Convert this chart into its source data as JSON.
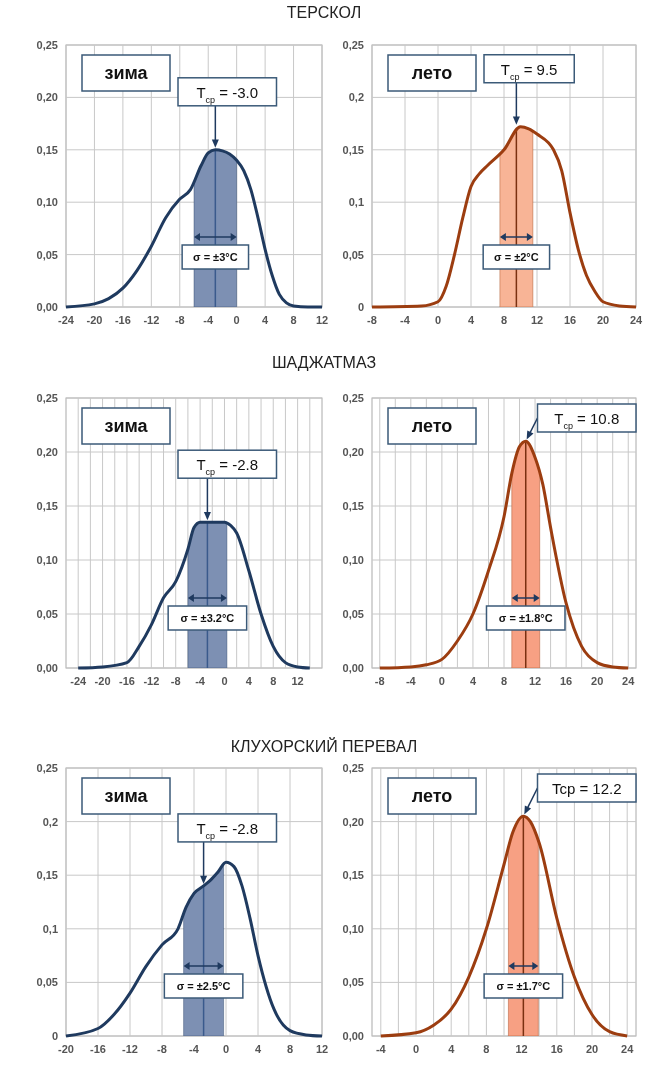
{
  "chart_data": [
    {
      "type": "line",
      "title": "ТЕРСКОЛ",
      "color": "#1f3a5f",
      "grid": true,
      "xlim": [
        -24,
        12
      ],
      "ylim": [
        0,
        0.25
      ],
      "xticks": [
        -24,
        -20,
        -16,
        -12,
        -8,
        -4,
        0,
        4,
        8,
        12
      ],
      "yticks": [
        {
          "value": 0,
          "label": "0,00"
        },
        {
          "value": 0.05,
          "label": "0,05"
        },
        {
          "value": 0.1,
          "label": "0,10"
        },
        {
          "value": 0.15,
          "label": "0,15"
        },
        {
          "value": 0.2,
          "label": "0,20"
        },
        {
          "value": 0.25,
          "label": "0,25"
        }
      ],
      "x": [
        -24,
        -20,
        -18,
        -16,
        -14,
        -12,
        -10,
        -8,
        -6.5,
        -5,
        -4,
        -3,
        -2,
        -1,
        0,
        1,
        2,
        3,
        4,
        5,
        6,
        7,
        8,
        10,
        12
      ],
      "values": [
        0,
        0.003,
        0.008,
        0.018,
        0.035,
        0.058,
        0.085,
        0.103,
        0.112,
        0.135,
        0.147,
        0.15,
        0.149,
        0.146,
        0.14,
        0.13,
        0.112,
        0.085,
        0.055,
        0.03,
        0.012,
        0.004,
        0.001,
        0,
        0
      ],
      "bands": [
        {
          "axis": "x",
          "from": -6,
          "to": 0,
          "color": "#7d90b3"
        }
      ],
      "ref_lines": [
        {
          "axis": "x",
          "value": -3,
          "color": "#3a5a8c"
        }
      ],
      "annotations": [
        "зима",
        {
          "text": "T$_{ср}$ = -3.0",
          "x": -3,
          "y": 0.15
        },
        "σ = ±3°C"
      ]
    },
    {
      "type": "line",
      "color": "#9c3d10",
      "grid": true,
      "xlim": [
        -8,
        24
      ],
      "ylim": [
        0,
        0.25
      ],
      "xticks": [
        -8,
        -4,
        0,
        4,
        8,
        12,
        16,
        20,
        24
      ],
      "yticks": [
        {
          "value": 0,
          "label": "0"
        },
        {
          "value": 0.05,
          "label": "0,05"
        },
        {
          "value": 0.1,
          "label": "0,1"
        },
        {
          "value": 0.15,
          "label": "0,15"
        },
        {
          "value": 0.2,
          "label": "0,2"
        },
        {
          "value": 0.25,
          "label": "0,25"
        }
      ],
      "x": [
        -8,
        -2,
        0,
        1,
        2,
        3,
        4,
        5,
        6,
        8,
        10,
        11,
        12,
        14,
        15,
        16,
        17,
        18,
        19,
        20,
        22,
        24
      ],
      "values": [
        0,
        0.001,
        0.005,
        0.02,
        0.05,
        0.085,
        0.115,
        0.127,
        0.135,
        0.15,
        0.172,
        0.17,
        0.165,
        0.15,
        0.13,
        0.09,
        0.055,
        0.03,
        0.015,
        0.005,
        0.001,
        0
      ],
      "bands": [
        {
          "axis": "x",
          "from": 7.5,
          "to": 11.5,
          "color": "#f8b496"
        }
      ],
      "ref_lines": [
        {
          "axis": "x",
          "value": 9.5,
          "color": "#7a3010"
        }
      ],
      "annotations": [
        "лето",
        {
          "text": "T$_{ср}$ = 9.5",
          "x": 9.5,
          "y": 0.172
        },
        "σ = ±2°C"
      ]
    },
    {
      "type": "line",
      "title": "ШАДЖАТМАЗ",
      "color": "#1f3a5f",
      "grid": true,
      "xlim": [
        -26,
        16
      ],
      "ylim": [
        0,
        0.25
      ],
      "xticks": [
        -24,
        {
          "value": -22,
          "label": null
        },
        -20,
        {
          "value": -18,
          "label": null
        },
        -16,
        {
          "value": -14,
          "label": null
        },
        -12,
        {
          "value": -10,
          "label": null
        },
        -8,
        {
          "value": -6,
          "label": null
        },
        -4,
        {
          "value": -2,
          "label": null
        },
        0,
        {
          "value": 2,
          "label": null
        },
        4,
        {
          "value": 6,
          "label": null
        },
        8,
        {
          "value": 10,
          "label": null
        },
        12,
        {
          "value": 14,
          "label": null
        }
      ],
      "yticks": [
        {
          "value": 0,
          "label": "0,00"
        },
        {
          "value": 0.05,
          "label": "0,05"
        },
        {
          "value": 0.1,
          "label": "0,10"
        },
        {
          "value": 0.15,
          "label": "0,15"
        },
        {
          "value": 0.2,
          "label": "0,20"
        },
        {
          "value": 0.25,
          "label": "0,25"
        }
      ],
      "x": [
        -24,
        -20,
        -16,
        -14,
        -12,
        -10,
        -8,
        -6,
        -5,
        -4,
        -2,
        0,
        1,
        2,
        4,
        6,
        8,
        10,
        12,
        14
      ],
      "values": [
        0,
        0.001,
        0.005,
        0.02,
        0.04,
        0.065,
        0.08,
        0.11,
        0.13,
        0.135,
        0.135,
        0.135,
        0.132,
        0.125,
        0.09,
        0.05,
        0.02,
        0.005,
        0.001,
        0
      ],
      "bands": [
        {
          "axis": "x",
          "from": -6,
          "to": 0.4,
          "color": "#7d90b3"
        }
      ],
      "ref_lines": [
        {
          "axis": "x",
          "value": -2.8,
          "color": "#3a5a8c"
        }
      ],
      "annotations": [
        "зима",
        {
          "text": "T$_{ср}$ = -2.8",
          "x": -2.8,
          "y": 0.135
        },
        "σ = ±3.2°C"
      ]
    },
    {
      "type": "line",
      "color": "#9c3d10",
      "grid": true,
      "xlim": [
        -9,
        25
      ],
      "ylim": [
        0,
        0.25
      ],
      "xticks": [
        -8,
        {
          "value": -6,
          "label": null
        },
        -4,
        {
          "value": -2,
          "label": null
        },
        0,
        {
          "value": 2,
          "label": null
        },
        4,
        {
          "value": 6,
          "label": null
        },
        8,
        {
          "value": 10,
          "label": null
        },
        12,
        {
          "value": 14,
          "label": null
        },
        16,
        {
          "value": 18,
          "label": null
        },
        20,
        {
          "value": 22,
          "label": null
        },
        24
      ],
      "yticks": [
        {
          "value": 0,
          "label": "0,00"
        },
        {
          "value": 0.05,
          "label": "0,05"
        },
        {
          "value": 0.1,
          "label": "0,10"
        },
        {
          "value": 0.15,
          "label": "0,15"
        },
        {
          "value": 0.2,
          "label": "0,20"
        },
        {
          "value": 0.25,
          "label": "0,25"
        }
      ],
      "x": [
        -8,
        -4,
        -2,
        0,
        2,
        4,
        6,
        8,
        9,
        10,
        10.8,
        12,
        13,
        14,
        16,
        18,
        20,
        22,
        24
      ],
      "values": [
        0,
        0.001,
        0.003,
        0.008,
        0.025,
        0.05,
        0.09,
        0.14,
        0.18,
        0.205,
        0.21,
        0.195,
        0.17,
        0.13,
        0.06,
        0.02,
        0.005,
        0.001,
        0
      ],
      "bands": [
        {
          "axis": "x",
          "from": 9,
          "to": 12.6,
          "color": "#f7a083"
        }
      ],
      "ref_lines": [
        {
          "axis": "x",
          "value": 10.8,
          "color": "#7a3010"
        }
      ],
      "annotations": [
        "лето",
        {
          "text": "T$_{ср}$ = 10.8",
          "x": 10.8,
          "y": 0.21
        },
        "σ = ±1.8°C"
      ]
    },
    {
      "type": "line",
      "title": "КЛУХОРСКИЙ ПЕРЕВАЛ",
      "color": "#1f3a5f",
      "grid": true,
      "xlim": [
        -20,
        12
      ],
      "ylim": [
        0,
        0.25
      ],
      "xticks": [
        -20,
        -16,
        -12,
        -8,
        -4,
        0,
        4,
        8,
        12
      ],
      "yticks": [
        {
          "value": 0,
          "label": "0"
        },
        {
          "value": 0.05,
          "label": "0,05"
        },
        {
          "value": 0.1,
          "label": "0,1"
        },
        {
          "value": 0.15,
          "label": "0,15"
        },
        {
          "value": 0.2,
          "label": "0,2"
        },
        {
          "value": 0.25,
          "label": "0,25"
        }
      ],
      "x": [
        -20,
        -16,
        -14,
        -12,
        -10,
        -8,
        -6,
        -5,
        -4,
        -2.8,
        -2,
        -1,
        0,
        1,
        2,
        3,
        4,
        6,
        8,
        10,
        12
      ],
      "values": [
        0,
        0.007,
        0.02,
        0.04,
        0.065,
        0.085,
        0.1,
        0.12,
        0.133,
        0.14,
        0.145,
        0.153,
        0.162,
        0.158,
        0.14,
        0.11,
        0.075,
        0.025,
        0.005,
        0.001,
        0
      ],
      "bands": [
        {
          "axis": "x",
          "from": -5.3,
          "to": -0.3,
          "color": "#7d90b3"
        }
      ],
      "ref_lines": [
        {
          "axis": "x",
          "value": -2.8,
          "color": "#3a5a8c"
        }
      ],
      "annotations": [
        "зима",
        {
          "text": "T$_{ср}$ = -2.8",
          "x": -2.8,
          "y": 0.14
        },
        "σ = ±2.5°C"
      ]
    },
    {
      "type": "line",
      "color": "#9c3d10",
      "grid": true,
      "xlim": [
        -5,
        25
      ],
      "ylim": [
        0,
        0.25
      ],
      "xticks": [
        -4,
        {
          "value": -2,
          "label": null
        },
        0,
        {
          "value": 2,
          "label": null
        },
        4,
        {
          "value": 6,
          "label": null
        },
        8,
        {
          "value": 10,
          "label": null
        },
        12,
        {
          "value": 14,
          "label": null
        },
        16,
        {
          "value": 18,
          "label": null
        },
        20,
        {
          "value": 22,
          "label": null
        },
        24
      ],
      "yticks": [
        {
          "value": 0,
          "label": "0,00"
        },
        {
          "value": 0.05,
          "label": "0,05"
        },
        {
          "value": 0.1,
          "label": "0,10"
        },
        {
          "value": 0.15,
          "label": "0,15"
        },
        {
          "value": 0.2,
          "label": "0,20"
        },
        {
          "value": 0.25,
          "label": "0,25"
        }
      ],
      "x": [
        -4,
        0,
        2,
        4,
        6,
        8,
        10,
        11,
        12.2,
        13,
        14,
        16,
        18,
        20,
        22,
        24
      ],
      "values": [
        0,
        0.003,
        0.01,
        0.025,
        0.055,
        0.1,
        0.16,
        0.19,
        0.205,
        0.2,
        0.18,
        0.11,
        0.055,
        0.02,
        0.004,
        0
      ],
      "bands": [
        {
          "axis": "x",
          "from": 10.5,
          "to": 13.9,
          "color": "#f7a083"
        }
      ],
      "ref_lines": [
        {
          "axis": "x",
          "value": 12.2,
          "color": "#7a3010"
        }
      ],
      "annotations": [
        "лето",
        {
          "text": "Tcp = 12.2",
          "x": 12.2,
          "y": 0.205
        },
        "σ = ±1.7°C"
      ]
    }
  ]
}
